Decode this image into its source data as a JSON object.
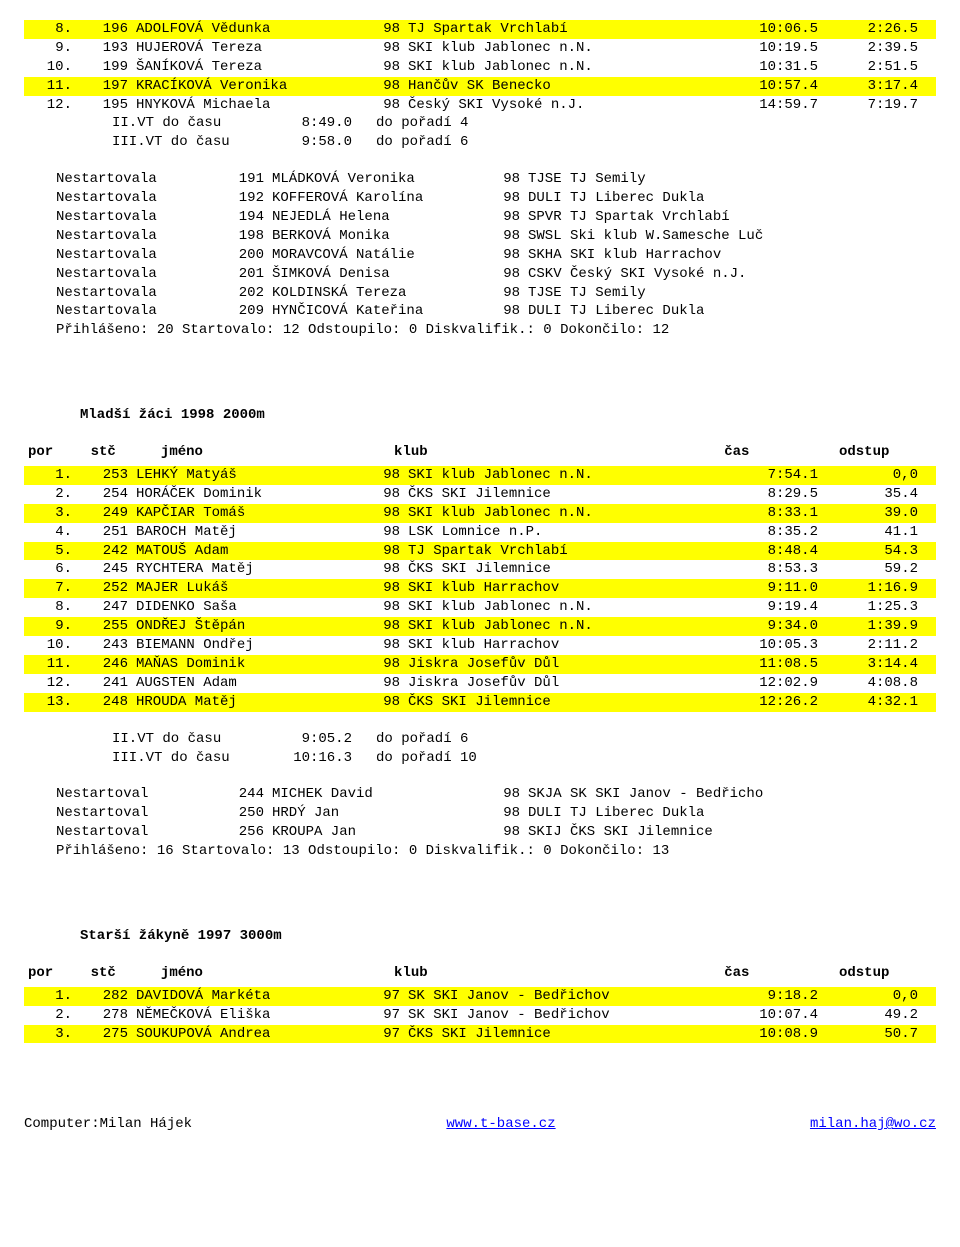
{
  "section1": {
    "rows": [
      {
        "hl": true,
        "rank": "8.",
        "bib": "196",
        "name": "ADOLFOVÁ Vědunka",
        "yr": "98",
        "club": "TJ Spartak Vrchlabí",
        "time": "10:06.5",
        "gap": "2:26.5"
      },
      {
        "hl": false,
        "rank": "9.",
        "bib": "193",
        "name": "HUJEROVÁ Tereza",
        "yr": "98",
        "club": "SKI klub Jablonec n.N.",
        "time": "10:19.5",
        "gap": "2:39.5"
      },
      {
        "hl": false,
        "rank": "10.",
        "bib": "199",
        "name": "ŠANÍKOVÁ Tereza",
        "yr": "98",
        "club": "SKI klub Jablonec n.N.",
        "time": "10:31.5",
        "gap": "2:51.5"
      },
      {
        "hl": true,
        "rank": "11.",
        "bib": "197",
        "name": "KRACÍKOVÁ Veronika",
        "yr": "98",
        "club": "Hančův SK Benecko",
        "time": "10:57.4",
        "gap": "3:17.4"
      },
      {
        "hl": false,
        "rank": "12.",
        "bib": "195",
        "name": "HNYKOVÁ Michaela",
        "yr": "98",
        "club": "Český SKI Vysoké n.J.",
        "time": "14:59.7",
        "gap": "7:19.7"
      }
    ],
    "vt": [
      {
        "label": "II.VT do času",
        "time": "8:49.0",
        "note": "do pořadí 4"
      },
      {
        "label": "III.VT do času",
        "time": "9:58.0",
        "note": "do pořadí 6"
      }
    ],
    "ns": [
      {
        "s": "Nestartovala",
        "bib": "191",
        "name": "MLÁDKOVÁ Veronika",
        "yr": "98",
        "club": "TJSE TJ Semily"
      },
      {
        "s": "Nestartovala",
        "bib": "192",
        "name": "KOFFEROVÁ Karolína",
        "yr": "98",
        "club": "DULI TJ Liberec Dukla"
      },
      {
        "s": "Nestartovala",
        "bib": "194",
        "name": "NEJEDLÁ Helena",
        "yr": "98",
        "club": "SPVR TJ Spartak Vrchlabí"
      },
      {
        "s": "Nestartovala",
        "bib": "198",
        "name": "BERKOVÁ Monika",
        "yr": "98",
        "club": "SWSL Ski klub W.Samesche Luč"
      },
      {
        "s": "Nestartovala",
        "bib": "200",
        "name": "MORAVCOVÁ Natálie",
        "yr": "98",
        "club": "SKHA SKI klub Harrachov"
      },
      {
        "s": "Nestartovala",
        "bib": "201",
        "name": "ŠIMKOVÁ Denisa",
        "yr": "98",
        "club": "CSKV Český SKI Vysoké n.J."
      },
      {
        "s": "Nestartovala",
        "bib": "202",
        "name": "KOLDINSKÁ Tereza",
        "yr": "98",
        "club": "TJSE TJ Semily"
      },
      {
        "s": "Nestartovala",
        "bib": "209",
        "name": "HYNČICOVÁ Kateřina",
        "yr": "98",
        "club": "DULI TJ Liberec Dukla"
      }
    ],
    "summary": "Přihlášeno: 20 Startovalo: 12 Odstoupilo:  0 Diskvalifik.:  0 Dokončilo: 12"
  },
  "section2": {
    "title": "Mladší žáci   1998    2000m",
    "header": {
      "por": "por",
      "stc": "stč",
      "jmeno": "jméno",
      "klub": "klub",
      "cas": "čas",
      "odstup": "odstup"
    },
    "rows": [
      {
        "hl": true,
        "rank": "1.",
        "bib": "253",
        "name": "LEHKÝ Matyáš",
        "yr": "98",
        "club": "SKI klub Jablonec n.N.",
        "time": "7:54.1",
        "gap": "0,0"
      },
      {
        "hl": false,
        "rank": "2.",
        "bib": "254",
        "name": "HORÁČEK Dominik",
        "yr": "98",
        "club": "ČKS SKI Jilemnice",
        "time": "8:29.5",
        "gap": "35.4"
      },
      {
        "hl": true,
        "rank": "3.",
        "bib": "249",
        "name": "KAPČIAR Tomáš",
        "yr": "98",
        "club": "SKI klub Jablonec n.N.",
        "time": "8:33.1",
        "gap": "39.0"
      },
      {
        "hl": false,
        "rank": "4.",
        "bib": "251",
        "name": "BAROCH Matěj",
        "yr": "98",
        "club": "LSK Lomnice n.P.",
        "time": "8:35.2",
        "gap": "41.1"
      },
      {
        "hl": true,
        "rank": "5.",
        "bib": "242",
        "name": "MATOUŠ Adam",
        "yr": "98",
        "club": "TJ Spartak Vrchlabí",
        "time": "8:48.4",
        "gap": "54.3"
      },
      {
        "hl": false,
        "rank": "6.",
        "bib": "245",
        "name": "RYCHTERA Matěj",
        "yr": "98",
        "club": "ČKS SKI Jilemnice",
        "time": "8:53.3",
        "gap": "59.2"
      },
      {
        "hl": true,
        "rank": "7.",
        "bib": "252",
        "name": "MAJER Lukáš",
        "yr": "98",
        "club": "SKI klub Harrachov",
        "time": "9:11.0",
        "gap": "1:16.9"
      },
      {
        "hl": false,
        "rank": "8.",
        "bib": "247",
        "name": "DIDENKO Saša",
        "yr": "98",
        "club": "SKI klub Jablonec n.N.",
        "time": "9:19.4",
        "gap": "1:25.3"
      },
      {
        "hl": true,
        "rank": "9.",
        "bib": "255",
        "name": "ONDŘEJ Štěpán",
        "yr": "98",
        "club": "SKI klub Jablonec n.N.",
        "time": "9:34.0",
        "gap": "1:39.9"
      },
      {
        "hl": false,
        "rank": "10.",
        "bib": "243",
        "name": "BIEMANN Ondřej",
        "yr": "98",
        "club": "SKI klub Harrachov",
        "time": "10:05.3",
        "gap": "2:11.2"
      },
      {
        "hl": true,
        "rank": "11.",
        "bib": "246",
        "name": "MAŇAS Dominik",
        "yr": "98",
        "club": "Jiskra Josefův Důl",
        "time": "11:08.5",
        "gap": "3:14.4"
      },
      {
        "hl": false,
        "rank": "12.",
        "bib": "241",
        "name": "AUGSTEN Adam",
        "yr": "98",
        "club": "Jiskra Josefův Důl",
        "time": "12:02.9",
        "gap": "4:08.8"
      },
      {
        "hl": true,
        "rank": "13.",
        "bib": "248",
        "name": "HROUDA Matěj",
        "yr": "98",
        "club": "ČKS SKI Jilemnice",
        "time": "12:26.2",
        "gap": "4:32.1"
      }
    ],
    "vt": [
      {
        "label": "II.VT do času",
        "time": "9:05.2",
        "note": "do pořadí 6"
      },
      {
        "label": "III.VT do času",
        "time": "10:16.3",
        "note": "do pořadí 10"
      }
    ],
    "ns": [
      {
        "s": "Nestartoval",
        "bib": "244",
        "name": "MICHEK David",
        "yr": "98",
        "club": "SKJA SK SKI Janov - Bedřicho"
      },
      {
        "s": "Nestartoval",
        "bib": "250",
        "name": "HRDÝ Jan",
        "yr": "98",
        "club": "DULI TJ Liberec Dukla"
      },
      {
        "s": "Nestartoval",
        "bib": "256",
        "name": "KROUPA Jan",
        "yr": "98",
        "club": "SKIJ ČKS SKI Jilemnice"
      }
    ],
    "summary": "Přihlášeno: 16 Startovalo: 13 Odstoupilo:  0 Diskvalifik.:  0 Dokončilo: 13"
  },
  "section3": {
    "title": "Starší žákyně  1997    3000m",
    "header": {
      "por": "por",
      "stc": "stč",
      "jmeno": "jméno",
      "klub": "klub",
      "cas": "čas",
      "odstup": "odstup"
    },
    "rows": [
      {
        "hl": true,
        "rank": "1.",
        "bib": "282",
        "name": "DAVIDOVÁ Markéta",
        "yr": "97",
        "club": "SK SKI Janov - Bedřichov",
        "time": "9:18.2",
        "gap": "0,0"
      },
      {
        "hl": false,
        "rank": "2.",
        "bib": "278",
        "name": "NĚMEČKOVÁ Eliška",
        "yr": "97",
        "club": "SK SKI Janov - Bedřichov",
        "time": "10:07.4",
        "gap": "49.2"
      },
      {
        "hl": true,
        "rank": "3.",
        "bib": "275",
        "name": "SOUKUPOVÁ Andrea",
        "yr": "97",
        "club": "ČKS SKI Jilemnice",
        "time": "10:08.9",
        "gap": "50.7"
      }
    ]
  },
  "footer": {
    "left": "Computer:Milan Hájek",
    "mid_text": "www.t-base.cz",
    "mid_href": "http://www.t-base.cz",
    "right_text": "milan.haj@wo.cz",
    "right_href": "mailto:milan.haj@wo.cz"
  }
}
